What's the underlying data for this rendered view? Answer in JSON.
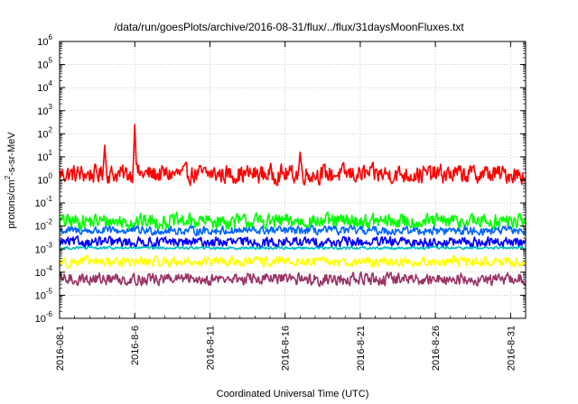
{
  "chart_data": {
    "type": "line",
    "title": "/data/run/goesPlots/archive/2016-08-31/flux/../flux/31daysMoonFluxes.txt",
    "xlabel": "Coordinated Universal Time (UTC)",
    "ylabel_parts": {
      "base": "protons/cm",
      "sup": "2",
      "tail": "-s-sr-MeV"
    },
    "yscale": "log",
    "ylim_exponents": [
      -6,
      6
    ],
    "ytick_exponents": [
      -6,
      -5,
      -4,
      -3,
      -2,
      -1,
      0,
      1,
      2,
      3,
      4,
      5,
      6
    ],
    "xlim_days": [
      "2016-08-01",
      "2016-09-01"
    ],
    "xtick_labels": [
      "2016-08-1",
      "2016-8-6",
      "2016-8-11",
      "2016-8-16",
      "2016-8-21",
      "2016-8-26",
      "2016-8-31"
    ],
    "xtick_dates": [
      "2016-08-01",
      "2016-08-06",
      "2016-08-11",
      "2016-08-16",
      "2016-08-21",
      "2016-08-26",
      "2016-08-31"
    ],
    "grid": true,
    "series": [
      {
        "color": "#ff0000",
        "median_log10": 0.25,
        "amplitude": 0.55,
        "spikes": [
          [
            "2016-08-06",
            2.4
          ],
          [
            "2016-08-04",
            1.5
          ],
          [
            "2016-08-17",
            1.2
          ]
        ]
      },
      {
        "color": "#00ff00",
        "median_log10": -1.8,
        "amplitude": 0.45,
        "spikes": []
      },
      {
        "color": "#0066ff",
        "median_log10": -2.2,
        "amplitude": 0.25,
        "spikes": []
      },
      {
        "color": "#0000ff",
        "median_log10": -2.7,
        "amplitude": 0.3,
        "spikes": []
      },
      {
        "color": "#00c0c0",
        "median_log10": -2.95,
        "amplitude": 0.08,
        "spikes": []
      },
      {
        "color": "#ffff00",
        "median_log10": -3.55,
        "amplitude": 0.3,
        "spikes": []
      },
      {
        "color": "#993366",
        "median_log10": -4.3,
        "amplitude": 0.35,
        "spikes": []
      }
    ]
  }
}
